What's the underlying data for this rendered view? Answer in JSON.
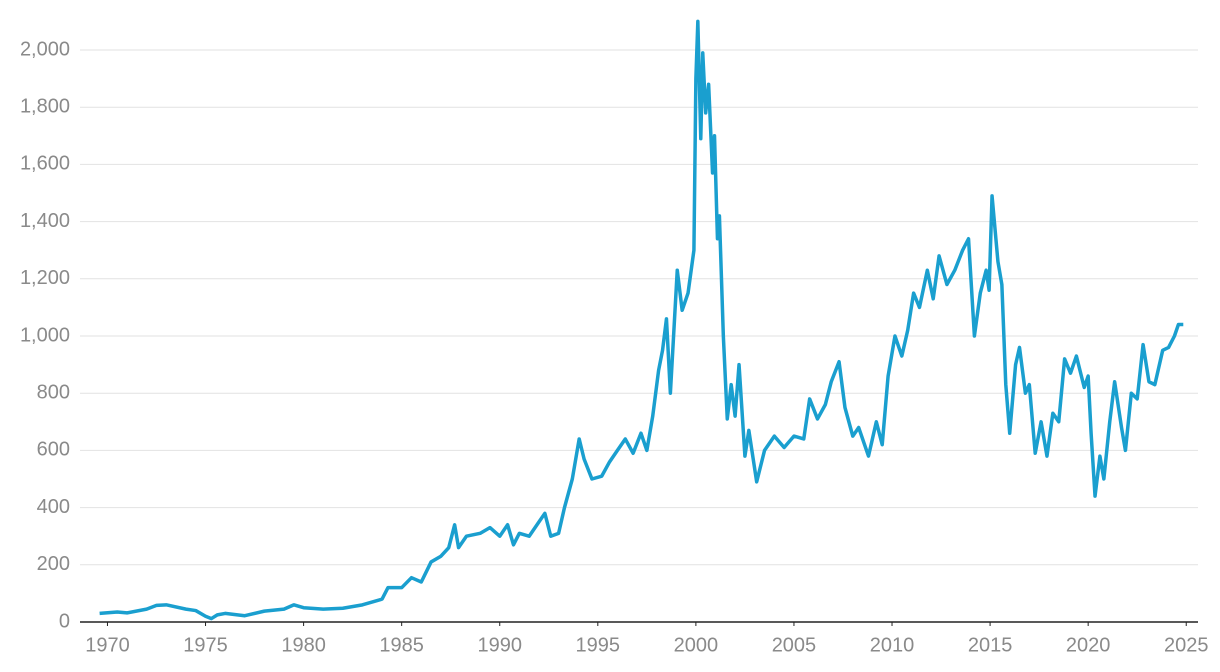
{
  "chart_data": {
    "type": "line",
    "xlim": [
      1968.6,
      2025.6
    ],
    "ylim": [
      0,
      2100
    ],
    "xticks": [
      1970,
      1975,
      1980,
      1985,
      1990,
      1995,
      2000,
      2005,
      2010,
      2015,
      2020,
      2025
    ],
    "yticks": [
      0,
      {
        "value": 200,
        "label": "200"
      },
      400,
      600,
      800,
      {
        "value": 1000,
        "label": "1,000"
      },
      {
        "value": 1200,
        "label": "1,200"
      },
      {
        "value": 1400,
        "label": "1,400"
      },
      {
        "value": 1600,
        "label": "1,600"
      },
      {
        "value": 1800,
        "label": "1,800"
      },
      {
        "value": 2000,
        "label": "2,000"
      }
    ],
    "grid": true,
    "x": [
      1969.6,
      1970.5,
      1971,
      1972,
      1972.5,
      1973,
      1974,
      1974.5,
      1975,
      1975.3,
      1975.6,
      1976,
      1977,
      1978,
      1979,
      1979.5,
      1980,
      1981,
      1982,
      1983,
      1984,
      1984.3,
      1985,
      1985.5,
      1986,
      1986.5,
      1987,
      1987.4,
      1987.7,
      1987.9,
      1988.3,
      1989,
      1989.5,
      1990,
      1990.4,
      1990.7,
      1991,
      1991.5,
      1992,
      1992.3,
      1992.6,
      1993,
      1993.3,
      1993.7,
      1994.05,
      1994.3,
      1994.7,
      1995.2,
      1995.6,
      1996,
      1996.4,
      1996.8,
      1997.2,
      1997.5,
      1997.8,
      1998.1,
      1998.3,
      1998.5,
      1998.7,
      1999.05,
      1999.3,
      1999.6,
      1999.9,
      2000.0,
      2000.1,
      2000.25,
      2000.35,
      2000.5,
      2000.65,
      2000.85,
      2000.95,
      2001.1,
      2001.2,
      2001.4,
      2001.6,
      2001.8,
      2002,
      2002.2,
      2002.5,
      2002.7,
      2003.1,
      2003.5,
      2004,
      2004.5,
      2005,
      2005.5,
      2005.8,
      2006.2,
      2006.6,
      2006.9,
      2007.3,
      2007.6,
      2008,
      2008.3,
      2008.8,
      2009.2,
      2009.5,
      2009.8,
      2010.15,
      2010.5,
      2010.8,
      2011.1,
      2011.4,
      2011.8,
      2012.1,
      2012.4,
      2012.8,
      2013.2,
      2013.6,
      2013.9,
      2014.2,
      2014.5,
      2014.8,
      2014.95,
      2015.1,
      2015.4,
      2015.6,
      2015.8,
      2016.0,
      2016.3,
      2016.5,
      2016.8,
      2017.0,
      2017.3,
      2017.6,
      2017.9,
      2018.2,
      2018.5,
      2018.8,
      2019.1,
      2019.4,
      2019.8,
      2020.0,
      2020.15,
      2020.35,
      2020.6,
      2020.8,
      2021.1,
      2021.35,
      2021.7,
      2021.9,
      2022.2,
      2022.5,
      2022.8,
      2023.1,
      2023.4,
      2023.8,
      2024.1,
      2024.4,
      2024.6,
      2024.85
    ],
    "series": [
      {
        "color": "#1a9fcf",
        "values": [
          30,
          35,
          32,
          45,
          58,
          60,
          45,
          40,
          20,
          12,
          25,
          30,
          22,
          38,
          45,
          60,
          50,
          45,
          48,
          60,
          80,
          120,
          120,
          155,
          140,
          210,
          230,
          260,
          340,
          260,
          300,
          310,
          330,
          300,
          340,
          270,
          310,
          300,
          350,
          380,
          300,
          310,
          400,
          500,
          640,
          570,
          500,
          510,
          560,
          600,
          640,
          590,
          660,
          600,
          720,
          880,
          950,
          1060,
          800,
          1230,
          1090,
          1150,
          1300,
          1900,
          2100,
          1690,
          1990,
          1780,
          1880,
          1570,
          1700,
          1340,
          1420,
          1000,
          710,
          830,
          720,
          900,
          580,
          670,
          490,
          600,
          650,
          610,
          650,
          640,
          780,
          710,
          760,
          840,
          910,
          750,
          650,
          680,
          580,
          700,
          620,
          860,
          1000,
          930,
          1020,
          1150,
          1100,
          1230,
          1130,
          1280,
          1180,
          1230,
          1300,
          1340,
          1000,
          1150,
          1230,
          1160,
          1490,
          1260,
          1180,
          830,
          660,
          900,
          960,
          800,
          830,
          590,
          700,
          580,
          730,
          700,
          920,
          870,
          930,
          820,
          860,
          660,
          440,
          580,
          500,
          700,
          840,
          680,
          600,
          800,
          780,
          970,
          840,
          830,
          950,
          960,
          1000,
          1040,
          1040
        ]
      }
    ]
  }
}
